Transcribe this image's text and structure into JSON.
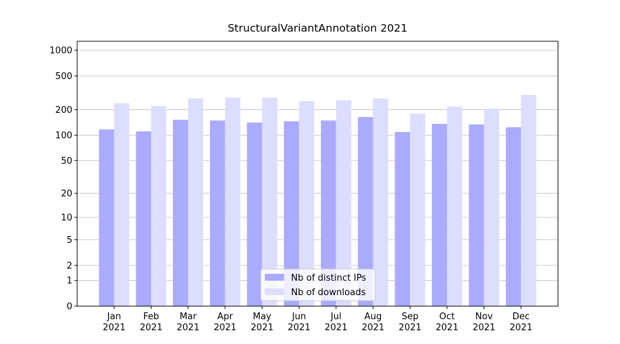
{
  "chart_data": {
    "type": "bar",
    "title": "StructuralVariantAnnotation 2021",
    "categories": [
      "Jan 2021",
      "Feb 2021",
      "Mar 2021",
      "Apr 2021",
      "May 2021",
      "Jun 2021",
      "Jul 2021",
      "Aug 2021",
      "Sep 2021",
      "Oct 2021",
      "Nov 2021",
      "Dec 2021"
    ],
    "series": [
      {
        "name": "Nb of distinct IPs",
        "color": "#aaaaff",
        "values": [
          117,
          111,
          152,
          149,
          141,
          146,
          149,
          164,
          109,
          136,
          134,
          124
        ]
      },
      {
        "name": "Nb of downloads",
        "color": "#ddddff",
        "values": [
          238,
          221,
          271,
          277,
          277,
          252,
          258,
          271,
          180,
          217,
          205,
          298
        ]
      }
    ],
    "yscale": "log1p",
    "ylim": [
      0,
      1273
    ],
    "yticks": [
      0,
      1,
      2,
      5,
      10,
      20,
      50,
      100,
      200,
      500,
      1000
    ],
    "grid": true,
    "legend": "lower center"
  }
}
